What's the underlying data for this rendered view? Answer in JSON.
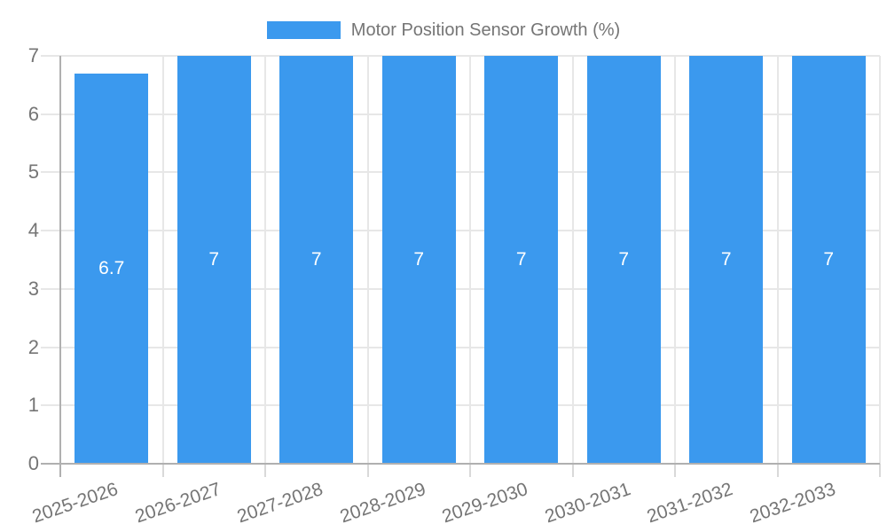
{
  "legend": {
    "label": "Motor Position Sensor Growth (%)"
  },
  "chart_data": {
    "type": "bar",
    "title": "Motor Position Sensor Growth (%)",
    "categories": [
      "2025-2026",
      "2026-2027",
      "2027-2028",
      "2028-2029",
      "2029-2030",
      "2030-2031",
      "2031-2032",
      "2032-2033"
    ],
    "values": [
      6.7,
      7,
      7,
      7,
      7,
      7,
      7,
      7
    ],
    "data_labels": [
      "6.7",
      "7",
      "7",
      "7",
      "7",
      "7",
      "7",
      "7"
    ],
    "xlabel": "",
    "ylabel": "",
    "ylim": [
      0,
      7
    ],
    "yticks": [
      "0",
      "1",
      "2",
      "3",
      "4",
      "5",
      "6",
      "7"
    ],
    "grid": true,
    "legend_position": "top"
  },
  "colors": {
    "bar": "#3B99EE",
    "axis_label": "#757575",
    "data_label": "#FFFFFF",
    "gridline": "#E7E7E7",
    "tick": "#D9D9D9",
    "axis_line": "#B0B0B0",
    "background": "#FFFFFF"
  }
}
